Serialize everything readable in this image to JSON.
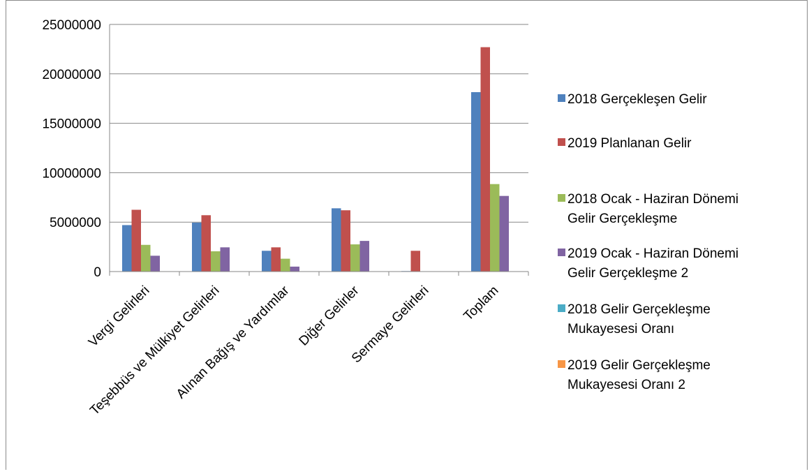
{
  "chart_data": {
    "type": "bar",
    "title": "",
    "xlabel": "",
    "ylabel": "",
    "ylim": [
      0,
      25000000
    ],
    "yticks": [
      0,
      5000000,
      10000000,
      15000000,
      20000000,
      25000000
    ],
    "grid": true,
    "legend_position": "right",
    "categories": [
      "Vergi Gelirleri",
      "Teşebbüs ve Mülkiyet Gelirleri",
      "Alınan Bağış ve Yardımlar",
      "Diğer Gelirler",
      "Sermaye Gelirleri",
      "Toplam"
    ],
    "series": [
      {
        "name": "2018 Gerçekleşen Gelir",
        "color": "#4f81bd",
        "values": [
          4700000,
          4950000,
          2100000,
          6400000,
          50000,
          18150000
        ]
      },
      {
        "name": "2019 Planlanan Gelir",
        "color": "#c0504d",
        "values": [
          6250000,
          5700000,
          2450000,
          6200000,
          2100000,
          22700000
        ]
      },
      {
        "name": "2018 Ocak - Haziran Dönemi Gelir Gerçekleşme",
        "color": "#9bbb59",
        "values": [
          2700000,
          2050000,
          1300000,
          2750000,
          0,
          8850000
        ]
      },
      {
        "name": "2019 Ocak - Haziran Dönemi Gelir Gerçekleşme 2",
        "color": "#8064a2",
        "values": [
          1600000,
          2450000,
          500000,
          3100000,
          0,
          7650000
        ]
      },
      {
        "name": "2018 Gelir Gerçekleşme Mukayesesi Oranı",
        "color": "#4bacc6",
        "values": [
          0,
          0,
          0,
          0,
          0,
          0
        ]
      },
      {
        "name": "2019 Gelir Gerçekleşme Mukayesesi Oranı 2",
        "color": "#f79646",
        "values": [
          0,
          0,
          0,
          0,
          0,
          0
        ]
      }
    ],
    "legend_lines": [
      [
        "2018 Gerçekleşen Gelir"
      ],
      [
        "2019 Planlanan Gelir"
      ],
      [
        "2018 Ocak - Haziran Dönemi",
        "Gelir Gerçekleşme"
      ],
      [
        "2019 Ocak - Haziran Dönemi",
        "Gelir Gerçekleşme 2"
      ],
      [
        "2018 Gelir Gerçekleşme",
        "Mukayesesi Oranı"
      ],
      [
        "2019 Gelir Gerçekleşme",
        "Mukayesesi Oranı 2"
      ]
    ]
  }
}
